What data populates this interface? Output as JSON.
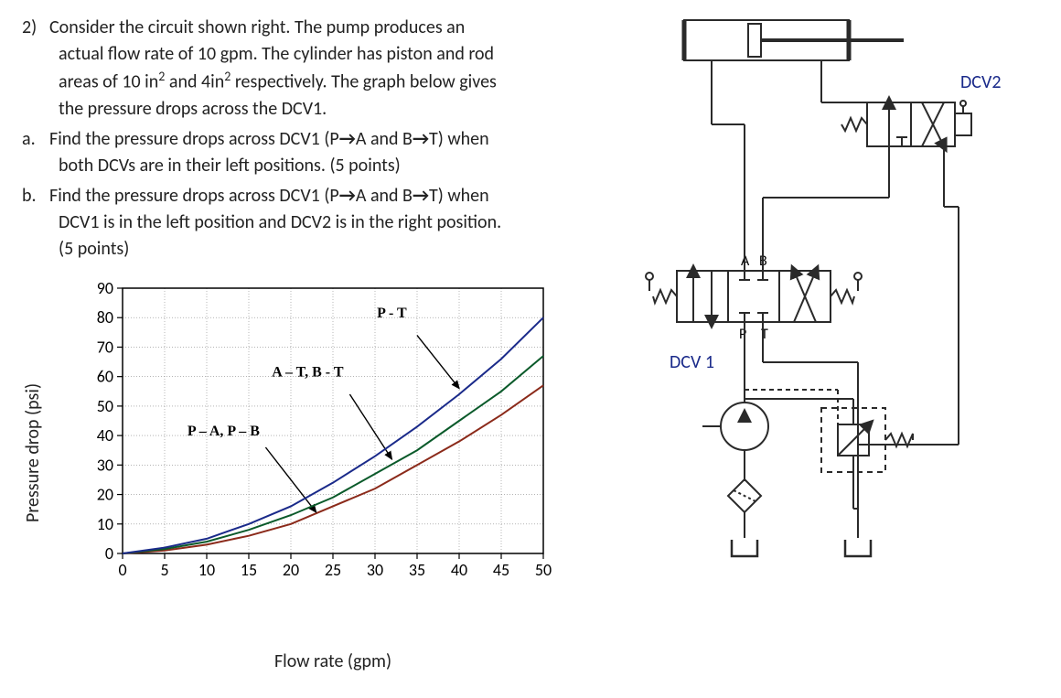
{
  "problem": {
    "number": "2)",
    "intro_1": "Consider the circuit shown right.  The pump produces an",
    "intro_2": "actual flow rate of 10 gpm. The cylinder has piston and rod",
    "intro_3_pre": "areas of 10 in",
    "intro_3_mid": " and 4in",
    "intro_3_post": " respectively. The graph below gives",
    "intro_4": "the pressure drops across the DCV1.",
    "a_label": "a.",
    "a_1": "Find the pressure drops across DCV1 (P",
    "a_arrow1": "→",
    "a_2": "A and B",
    "a_arrow2": "→",
    "a_3": "T) when",
    "a_4": "both DCVs are in their left positions. (5 points)",
    "b_label": "b.",
    "b_1": "Find the pressure drops across DCV1 (P",
    "b_arrow1": "→",
    "b_2": "A and B",
    "b_arrow2": "→",
    "b_3": "T) when",
    "b_4": "DCV1 is in the left position and DCV2 is in the right position.",
    "b_5": "(5 points)"
  },
  "chart": {
    "type": "line",
    "xlabel": "Flow rate (gpm)",
    "ylabel": "Pressure drop (psi)",
    "xlim": [
      0,
      50
    ],
    "ylim": [
      0,
      90
    ],
    "xtick_step": 5,
    "ytick_step": 10,
    "xtick_labels": [
      "0",
      "5",
      "10",
      "15",
      "20",
      "25",
      "30",
      "35",
      "40",
      "45",
      "50"
    ],
    "ytick_labels": [
      "0",
      "10",
      "20",
      "30",
      "40",
      "50",
      "60",
      "70",
      "80",
      "90"
    ],
    "background_color": "#ffffff",
    "grid_color": "#888888",
    "border_color": "#000000",
    "tick_fontsize": 18,
    "label_fontsize": 20,
    "series_label_fontsize": 16,
    "series": [
      {
        "name": "P – A, P – B",
        "color": "#8b2a1a",
        "width": 2,
        "points": [
          [
            0,
            0
          ],
          [
            5,
            1
          ],
          [
            10,
            3
          ],
          [
            15,
            6
          ],
          [
            20,
            10
          ],
          [
            25,
            16
          ],
          [
            30,
            22
          ],
          [
            35,
            30
          ],
          [
            40,
            38
          ],
          [
            45,
            47
          ],
          [
            50,
            57
          ]
        ],
        "label_xy": [
          12,
          40
        ],
        "arrow_from": [
          17,
          36
        ],
        "arrow_to": [
          23,
          14
        ]
      },
      {
        "name": "A – T, B - T",
        "color": "#0a5a2a",
        "width": 2,
        "points": [
          [
            0,
            0
          ],
          [
            5,
            1.5
          ],
          [
            10,
            4
          ],
          [
            15,
            8
          ],
          [
            20,
            13
          ],
          [
            25,
            19
          ],
          [
            30,
            27
          ],
          [
            35,
            35
          ],
          [
            40,
            45
          ],
          [
            45,
            55
          ],
          [
            50,
            67
          ]
        ],
        "label_xy": [
          22,
          60
        ],
        "arrow_from": [
          27,
          54
        ],
        "arrow_to": [
          32,
          32
        ]
      },
      {
        "name": "P - T",
        "color": "#1a2a8a",
        "width": 2,
        "points": [
          [
            0,
            0
          ],
          [
            5,
            2
          ],
          [
            10,
            5
          ],
          [
            15,
            10
          ],
          [
            20,
            16
          ],
          [
            25,
            24
          ],
          [
            30,
            33
          ],
          [
            35,
            43
          ],
          [
            40,
            54
          ],
          [
            45,
            66
          ],
          [
            50,
            80
          ]
        ],
        "label_xy": [
          32,
          80
        ],
        "arrow_from": [
          35,
          74
        ],
        "arrow_to": [
          40,
          56
        ]
      }
    ]
  },
  "schematic": {
    "label_dcv1": "DCV 1",
    "label_dcv2": "DCV2",
    "port_A": "A",
    "port_B": "B",
    "port_P": "P",
    "port_T": "T",
    "line_color": "#2a2a2a",
    "label_color_dcv1": "#1a2a8a",
    "label_color_dcv2": "#1a2a8a",
    "spring_color": "#2a2a2a",
    "dashed_color": "#2a2a2a"
  }
}
